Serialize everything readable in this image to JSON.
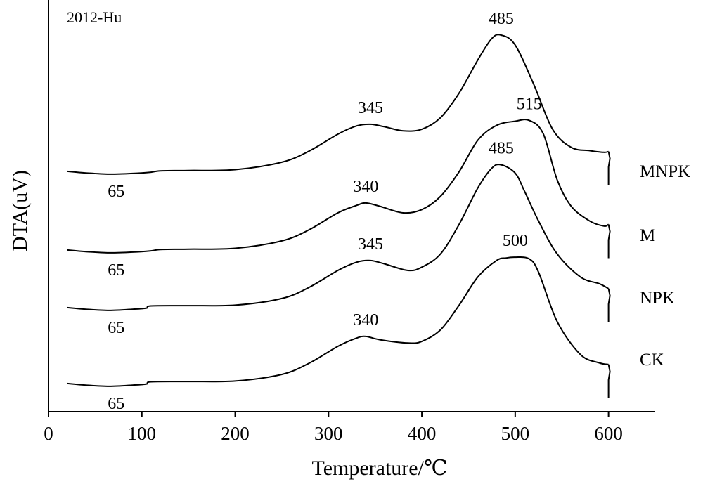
{
  "chart_data": {
    "type": "line",
    "title": "2012-Hu",
    "xlabel": "Temperature/℃",
    "ylabel": "DTA(uV)",
    "xlim": [
      0,
      650
    ],
    "xticks": [
      0,
      100,
      200,
      300,
      400,
      500,
      600
    ],
    "grid": false,
    "legend": "series names at right end of curves",
    "series": [
      {
        "name": "MNPK",
        "x": [
          20,
          40,
          65,
          90,
          110,
          120,
          150,
          200,
          250,
          280,
          310,
          330,
          345,
          360,
          380,
          400,
          420,
          440,
          460,
          475,
          485,
          500,
          520,
          540,
          560,
          580,
          595,
          600
        ],
        "y": [
          -0.25,
          -0.35,
          -0.42,
          -0.38,
          -0.3,
          -0.22,
          -0.2,
          -0.15,
          0.3,
          1.0,
          2.0,
          2.5,
          2.6,
          2.45,
          2.2,
          2.3,
          3.0,
          4.5,
          6.5,
          7.8,
          8.0,
          7.4,
          5.0,
          2.3,
          1.2,
          1.0,
          0.9,
          0.95
        ],
        "annotations": [
          {
            "x": 65,
            "label": "65",
            "position": "below"
          },
          {
            "x": 345,
            "label": "345",
            "position": "above"
          },
          {
            "x": 485,
            "label": "485",
            "position": "above"
          }
        ]
      },
      {
        "name": "M",
        "x": [
          20,
          40,
          65,
          90,
          110,
          120,
          150,
          200,
          250,
          280,
          310,
          330,
          340,
          355,
          380,
          400,
          420,
          440,
          460,
          480,
          500,
          515,
          530,
          545,
          560,
          580,
          595,
          600
        ],
        "y": [
          -0.25,
          -0.35,
          -0.42,
          -0.38,
          -0.3,
          -0.22,
          -0.2,
          -0.15,
          0.3,
          1.0,
          2.0,
          2.45,
          2.6,
          2.4,
          2.0,
          2.2,
          3.0,
          4.5,
          6.4,
          7.3,
          7.55,
          7.6,
          6.8,
          4.0,
          2.4,
          1.5,
          1.2,
          1.3
        ],
        "annotations": [
          {
            "x": 65,
            "label": "65",
            "position": "below"
          },
          {
            "x": 340,
            "label": "340",
            "position": "above"
          },
          {
            "x": 515,
            "label": "515",
            "position": "above"
          }
        ]
      },
      {
        "name": "NPK",
        "x": [
          20,
          40,
          65,
          90,
          105,
          110,
          150,
          200,
          250,
          280,
          310,
          330,
          345,
          360,
          385,
          400,
          420,
          440,
          460,
          475,
          485,
          500,
          510,
          525,
          545,
          570,
          590,
          600
        ],
        "y": [
          -0.25,
          -0.35,
          -0.42,
          -0.35,
          -0.28,
          -0.15,
          -0.13,
          -0.1,
          0.3,
          1.0,
          2.0,
          2.5,
          2.6,
          2.4,
          2.0,
          2.2,
          3.0,
          4.8,
          7.0,
          8.2,
          8.4,
          7.9,
          6.8,
          5.0,
          3.0,
          1.6,
          1.2,
          0.9
        ],
        "annotations": [
          {
            "x": 65,
            "label": "65",
            "position": "below"
          },
          {
            "x": 345,
            "label": "345",
            "position": "above"
          },
          {
            "x": 485,
            "label": "485",
            "position": "above"
          }
        ]
      },
      {
        "name": "CK",
        "x": [
          20,
          40,
          65,
          90,
          105,
          110,
          150,
          200,
          250,
          280,
          310,
          330,
          340,
          355,
          385,
          400,
          420,
          440,
          460,
          480,
          490,
          500,
          515,
          525,
          545,
          570,
          590,
          600
        ],
        "y": [
          -0.25,
          -0.35,
          -0.42,
          -0.35,
          -0.28,
          -0.15,
          -0.13,
          -0.1,
          0.3,
          1.0,
          2.0,
          2.5,
          2.6,
          2.4,
          2.2,
          2.3,
          3.0,
          4.5,
          6.2,
          7.2,
          7.35,
          7.4,
          7.3,
          6.5,
          3.5,
          1.5,
          1.0,
          0.9
        ],
        "annotations": [
          {
            "x": 65,
            "label": "65",
            "position": "below"
          },
          {
            "x": 340,
            "label": "340",
            "position": "above"
          },
          {
            "x": 500,
            "label": "500",
            "position": "above"
          }
        ]
      }
    ]
  }
}
